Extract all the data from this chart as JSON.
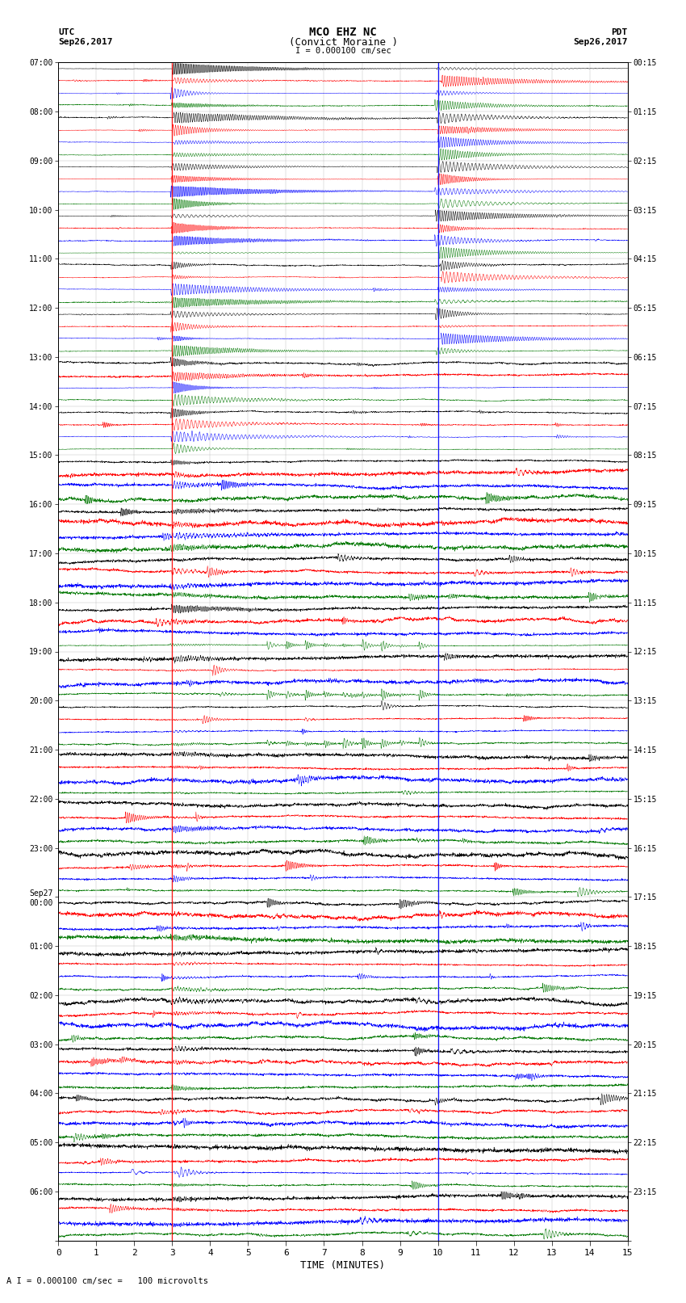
{
  "title_line1": "MCO EHZ NC",
  "title_line2": "(Convict Moraine )",
  "scale_text": "I = 0.000100 cm/sec",
  "footer_text": "A I = 0.000100 cm/sec =   100 microvolts",
  "xlabel": "TIME (MINUTES)",
  "utc_label": "UTC",
  "pdt_label": "PDT",
  "date_left": "Sep26,2017",
  "date_right": "Sep26,2017",
  "bg_color": "#ffffff",
  "trace_colors": [
    "#000000",
    "#ff0000",
    "#0000ff",
    "#007700"
  ],
  "num_rows": 96,
  "traces_per_row": 4,
  "x_min": 0,
  "x_max": 15,
  "left_times": [
    "07:00",
    "",
    "",
    "",
    "08:00",
    "",
    "",
    "",
    "09:00",
    "",
    "",
    "",
    "10:00",
    "",
    "",
    "",
    "11:00",
    "",
    "",
    "",
    "12:00",
    "",
    "",
    "",
    "13:00",
    "",
    "",
    "",
    "14:00",
    "",
    "",
    "",
    "15:00",
    "",
    "",
    "",
    "16:00",
    "",
    "",
    "",
    "17:00",
    "",
    "",
    "",
    "18:00",
    "",
    "",
    "",
    "19:00",
    "",
    "",
    "",
    "20:00",
    "",
    "",
    "",
    "21:00",
    "",
    "",
    "",
    "22:00",
    "",
    "",
    "",
    "23:00",
    "",
    "",
    "",
    "Sep27\n00:00",
    "",
    "",
    "",
    "01:00",
    "",
    "",
    "",
    "02:00",
    "",
    "",
    "",
    "03:00",
    "",
    "",
    "",
    "04:00",
    "",
    "",
    "",
    "05:00",
    "",
    "",
    "",
    "06:00",
    "",
    "",
    ""
  ],
  "right_times": [
    "00:15",
    "",
    "",
    "",
    "01:15",
    "",
    "",
    "",
    "02:15",
    "",
    "",
    "",
    "03:15",
    "",
    "",
    "",
    "04:15",
    "",
    "",
    "",
    "05:15",
    "",
    "",
    "",
    "06:15",
    "",
    "",
    "",
    "07:15",
    "",
    "",
    "",
    "08:15",
    "",
    "",
    "",
    "09:15",
    "",
    "",
    "",
    "10:15",
    "",
    "",
    "",
    "11:15",
    "",
    "",
    "",
    "12:15",
    "",
    "",
    "",
    "13:15",
    "",
    "",
    "",
    "14:15",
    "",
    "",
    "",
    "15:15",
    "",
    "",
    "",
    "16:15",
    "",
    "",
    "",
    "17:15",
    "",
    "",
    "",
    "18:15",
    "",
    "",
    "",
    "19:15",
    "",
    "",
    "",
    "20:15",
    "",
    "",
    "",
    "21:15",
    "",
    "",
    "",
    "22:15",
    "",
    "",
    "",
    "23:15",
    "",
    "",
    ""
  ],
  "red_line_x": 3.0,
  "blue_line_x": 10.0,
  "noise_seed": 12345,
  "fig_width": 8.5,
  "fig_height": 16.13,
  "dpi": 100
}
